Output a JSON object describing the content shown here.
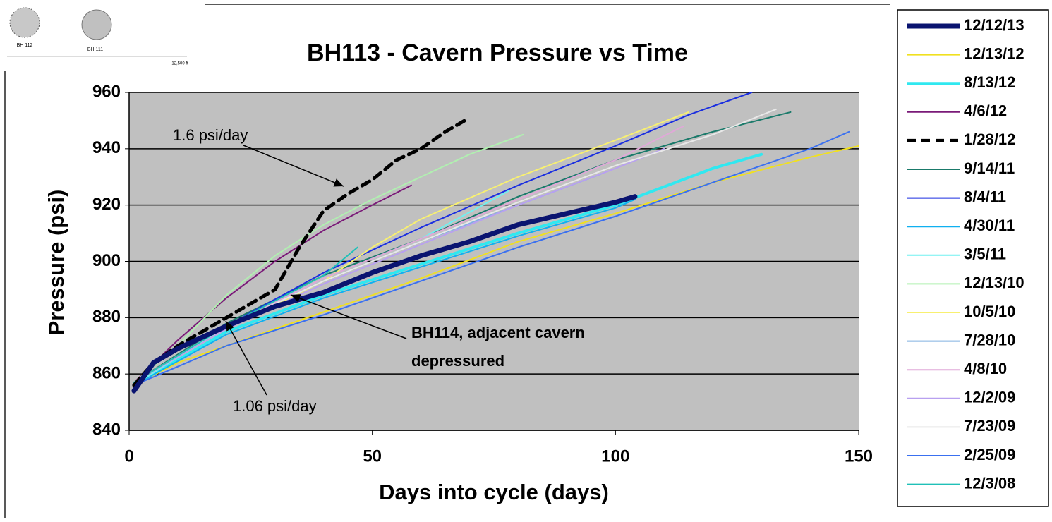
{
  "chart_data": {
    "type": "line",
    "title": "BH113 - Cavern Pressure vs Time",
    "xlabel": "Days into cycle (days)",
    "ylabel": "Pressure (psi)",
    "xlim": [
      0,
      150
    ],
    "xticks": [
      0,
      50,
      100,
      150
    ],
    "ylim": [
      840,
      960
    ],
    "yticks": [
      840,
      860,
      880,
      900,
      920,
      940,
      960
    ],
    "grid": true,
    "legend": "right",
    "annotations": [
      "1.6 psi/day",
      "BH114, adjacent cavern",
      "depressured",
      "1.06 psi/day"
    ],
    "inset_labels": [
      "BH 112",
      "BH 111",
      "12,500 ft"
    ],
    "series": [
      {
        "name": "12/12/13",
        "color": "#0a1470",
        "width": 7,
        "x": [
          1,
          5,
          10,
          20,
          30,
          40,
          50,
          60,
          70,
          80,
          90,
          100,
          104
        ],
        "values": [
          854,
          864,
          869,
          877,
          884,
          889,
          896,
          902,
          907,
          913,
          917,
          921,
          923
        ]
      },
      {
        "name": "12/13/12",
        "color": "#f0e020",
        "width": 2,
        "x": [
          1,
          10,
          20,
          40,
          60,
          80,
          100,
          120,
          140,
          150
        ],
        "values": [
          856,
          864,
          870,
          882,
          894,
          907,
          917,
          928,
          937,
          941
        ]
      },
      {
        "name": "8/13/12",
        "color": "#30e8f0",
        "width": 4,
        "x": [
          1,
          20,
          40,
          60,
          80,
          100,
          120,
          130
        ],
        "values": [
          856,
          875,
          888,
          899,
          910,
          920,
          933,
          938
        ]
      },
      {
        "name": "4/6/12",
        "color": "#7a1a78",
        "width": 2,
        "x": [
          1,
          10,
          20,
          30,
          40,
          50,
          58
        ],
        "values": [
          857,
          872,
          887,
          900,
          911,
          920,
          927
        ]
      },
      {
        "name": "1/28/12",
        "color": "#000000",
        "width": 5,
        "dash": true,
        "x": [
          1,
          5,
          10,
          20,
          30,
          35,
          40,
          45,
          50,
          55,
          60,
          65,
          69
        ],
        "values": [
          856,
          864,
          870,
          880,
          890,
          905,
          918,
          924,
          929,
          936,
          940,
          946,
          950
        ]
      },
      {
        "name": "9/14/11",
        "color": "#1a7a6a",
        "width": 2,
        "x": [
          1,
          20,
          40,
          60,
          80,
          100,
          120,
          136
        ],
        "values": [
          857,
          878,
          895,
          908,
          923,
          936,
          946,
          953
        ]
      },
      {
        "name": "8/4/11",
        "color": "#1a2ee0",
        "width": 2,
        "x": [
          1,
          20,
          40,
          60,
          80,
          100,
          115,
          128
        ],
        "values": [
          857,
          877,
          896,
          912,
          927,
          941,
          952,
          960
        ]
      },
      {
        "name": "4/30/11",
        "color": "#10b0f0",
        "width": 2,
        "x": [
          1,
          20,
          40,
          60,
          80,
          100,
          104
        ],
        "values": [
          856,
          874,
          887,
          898,
          909,
          919,
          922
        ]
      },
      {
        "name": "3/5/11",
        "color": "#70f0f0",
        "width": 2,
        "x": [
          1,
          20,
          40,
          60,
          78
        ],
        "values": [
          856,
          877,
          894,
          908,
          925
        ]
      },
      {
        "name": "12/13/10",
        "color": "#b0f0b0",
        "width": 2,
        "x": [
          1,
          10,
          20,
          30,
          40,
          50,
          60,
          70,
          81
        ],
        "values": [
          857,
          870,
          888,
          902,
          913,
          922,
          930,
          938,
          945
        ]
      },
      {
        "name": "10/5/10",
        "color": "#f8f070",
        "width": 2,
        "x": [
          1,
          20,
          40,
          50,
          60,
          80,
          100,
          115
        ],
        "values": [
          857,
          876,
          893,
          905,
          915,
          930,
          943,
          953
        ]
      },
      {
        "name": "7/28/10",
        "color": "#80b0e0",
        "width": 2,
        "x": [
          1,
          20,
          40,
          60,
          80,
          97
        ],
        "values": [
          857,
          877,
          893,
          907,
          920,
          931
        ]
      },
      {
        "name": "4/8/10",
        "color": "#e0a8d8",
        "width": 2,
        "x": [
          1,
          20,
          40,
          60,
          80,
          100,
          114
        ],
        "values": [
          857,
          877,
          894,
          908,
          922,
          936,
          948
        ]
      },
      {
        "name": "12/2/09",
        "color": "#b8a0f0",
        "width": 2,
        "x": [
          1,
          20,
          40,
          60,
          80,
          100,
          110
        ],
        "values": [
          857,
          876,
          892,
          906,
          920,
          933,
          940
        ]
      },
      {
        "name": "7/23/09",
        "color": "#e8e8e8",
        "width": 2,
        "x": [
          1,
          20,
          40,
          60,
          80,
          100,
          120,
          133
        ],
        "values": [
          857,
          877,
          893,
          907,
          921,
          934,
          945,
          954
        ]
      },
      {
        "name": "2/25/09",
        "color": "#3a70f0",
        "width": 2,
        "x": [
          1,
          20,
          40,
          60,
          80,
          100,
          120,
          140,
          148
        ],
        "values": [
          856,
          870,
          881,
          893,
          905,
          916,
          928,
          940,
          946
        ]
      },
      {
        "name": "12/3/08",
        "color": "#20c0b8",
        "width": 2,
        "x": [
          1,
          20,
          40,
          47
        ],
        "values": [
          857,
          877,
          895,
          905
        ]
      }
    ]
  }
}
